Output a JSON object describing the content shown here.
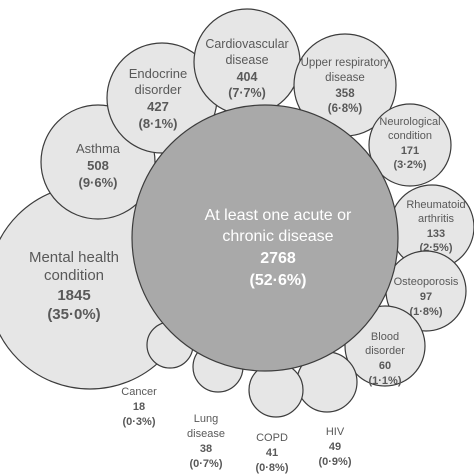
{
  "center": {
    "line1": "At least one acute or",
    "line2": "chronic disease",
    "count": "2768",
    "percent": "(52·6%)"
  },
  "bubbles": [
    {
      "id": "mental-health",
      "name_lines": [
        "Mental health",
        "condition"
      ],
      "count": "1845",
      "percent": "(35·0%)"
    },
    {
      "id": "asthma",
      "name_lines": [
        "Asthma"
      ],
      "count": "508",
      "percent": "(9·6%)"
    },
    {
      "id": "endocrine",
      "name_lines": [
        "Endocrine",
        "disorder"
      ],
      "count": "427",
      "percent": "(8·1%)"
    },
    {
      "id": "cardiovascular",
      "name_lines": [
        "Cardiovascular",
        "disease"
      ],
      "count": "404",
      "percent": "(7·7%)"
    },
    {
      "id": "upper-respiratory",
      "name_lines": [
        "Upper respiratory",
        "disease"
      ],
      "count": "358",
      "percent": "(6·8%)"
    },
    {
      "id": "neurological",
      "name_lines": [
        "Neurological",
        "condition"
      ],
      "count": "171",
      "percent": "(3·2%)"
    },
    {
      "id": "rheumatoid",
      "name_lines": [
        "Rheumatoid",
        "arthritis"
      ],
      "count": "133",
      "percent": "(2·5%)"
    },
    {
      "id": "osteoporosis",
      "name_lines": [
        "Osteoporosis"
      ],
      "count": "97",
      "percent": "(1·8%)"
    },
    {
      "id": "blood",
      "name_lines": [
        "Blood",
        "disorder"
      ],
      "count": "60",
      "percent": "(1·1%)"
    },
    {
      "id": "hiv",
      "name_lines": [
        "HIV"
      ],
      "count": "49",
      "percent": "(0·9%)"
    },
    {
      "id": "copd",
      "name_lines": [
        "COPD"
      ],
      "count": "41",
      "percent": "(0·8%)"
    },
    {
      "id": "lung",
      "name_lines": [
        "Lung",
        "disease"
      ],
      "count": "38",
      "percent": "(0·7%)"
    },
    {
      "id": "cancer",
      "name_lines": [
        "Cancer"
      ],
      "count": "18",
      "percent": "(0·3%)"
    }
  ]
}
